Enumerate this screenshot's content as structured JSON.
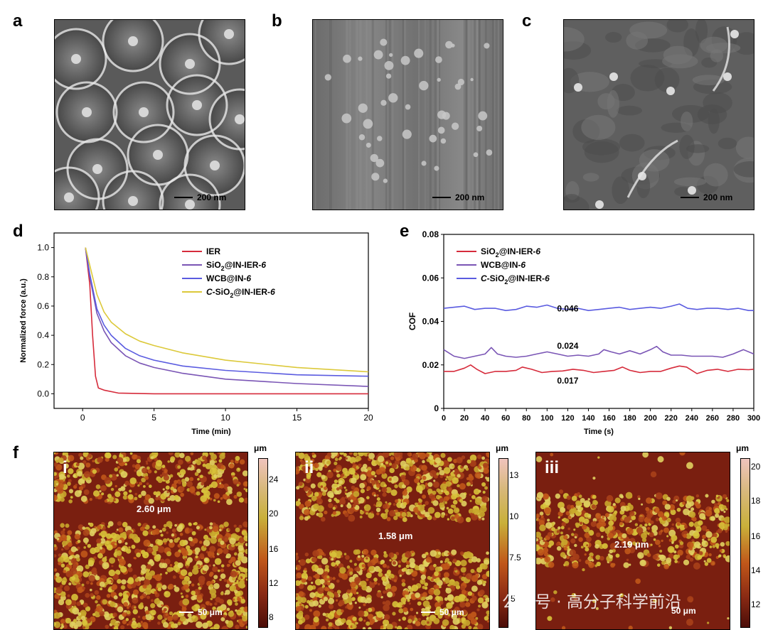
{
  "panels": {
    "a": "a",
    "b": "b",
    "c": "c",
    "d": "d",
    "e": "e",
    "f": "f"
  },
  "sem_scale_label": "200 nm",
  "chart_d": {
    "type": "line",
    "xlabel": "Time (min)",
    "ylabel": "Normalized force (a.u.)",
    "xlim": [
      -2,
      20
    ],
    "ylim": [
      -0.1,
      1.1
    ],
    "xticks": [
      0,
      5,
      10,
      15,
      20
    ],
    "yticks": [
      0.0,
      0.2,
      0.4,
      0.6,
      0.8,
      1.0
    ],
    "legend_position": "top-right",
    "series": [
      {
        "name": "IER",
        "color": "#d62b3b",
        "x": [
          0.2,
          0.5,
          0.7,
          0.9,
          1.1,
          1.5,
          2.5,
          5,
          10,
          20
        ],
        "y": [
          1.0,
          0.75,
          0.4,
          0.12,
          0.04,
          0.025,
          0.005,
          0.0,
          0.0,
          0.0
        ]
      },
      {
        "name": "SiO2@IN-IER-6",
        "color": "#7a55b5",
        "x": [
          0.2,
          0.5,
          1,
          1.5,
          2,
          3,
          4,
          5,
          7,
          10,
          15,
          20
        ],
        "y": [
          1.0,
          0.8,
          0.55,
          0.43,
          0.35,
          0.26,
          0.21,
          0.18,
          0.14,
          0.1,
          0.07,
          0.05
        ]
      },
      {
        "name": "WCB@IN-6",
        "color": "#5a5be0",
        "x": [
          0.2,
          0.5,
          1,
          1.5,
          2,
          3,
          4,
          5,
          7,
          10,
          15,
          20
        ],
        "y": [
          1.0,
          0.82,
          0.58,
          0.47,
          0.4,
          0.31,
          0.26,
          0.23,
          0.19,
          0.16,
          0.13,
          0.12
        ]
      },
      {
        "name": "C-SiO2@IN-IER-6",
        "color": "#dcc93a",
        "x": [
          0.2,
          0.5,
          1,
          1.5,
          2,
          3,
          4,
          5,
          7,
          10,
          15,
          20
        ],
        "y": [
          1.0,
          0.88,
          0.68,
          0.56,
          0.49,
          0.41,
          0.36,
          0.33,
          0.28,
          0.23,
          0.18,
          0.15
        ]
      }
    ],
    "legend": [
      {
        "pre": "IER",
        "sub": "",
        "post": "",
        "italic_pre": false
      },
      {
        "pre": "SiO",
        "sub": "2",
        "post": "@IN-IER-",
        "num": "6",
        "italic_pre": false
      },
      {
        "pre": "WCB@IN-",
        "sub": "",
        "post": "",
        "num": "6",
        "italic_pre": false
      },
      {
        "pre": "C",
        "mid": "-SiO",
        "sub": "2",
        "post": "@IN-IER-",
        "num": "6",
        "italic_pre": true
      }
    ]
  },
  "chart_e": {
    "type": "line",
    "xlabel": "Time (s)",
    "ylabel": "COF",
    "xlim": [
      0,
      300
    ],
    "ylim": [
      0,
      0.08
    ],
    "xticks": [
      0,
      20,
      40,
      60,
      80,
      100,
      120,
      140,
      160,
      180,
      200,
      220,
      240,
      260,
      280,
      300
    ],
    "yticks": [
      0,
      0.02,
      0.04,
      0.06,
      0.08
    ],
    "ytick_labels": [
      "0",
      "0.02",
      "0.04",
      "0.06",
      "0.08"
    ],
    "legend_position": "top-left",
    "annotations": [
      "0.046",
      "0.024",
      "0.017"
    ],
    "series": [
      {
        "name": "SiO2@IN-IER-6",
        "color": "#d62b3b",
        "x": [
          0,
          10,
          20,
          26,
          32,
          40,
          50,
          60,
          70,
          76,
          85,
          95,
          105,
          115,
          125,
          135,
          145,
          155,
          165,
          173,
          180,
          190,
          200,
          210,
          220,
          228,
          235,
          245,
          255,
          265,
          275,
          285,
          295,
          300
        ],
        "y": [
          0.017,
          0.017,
          0.0185,
          0.02,
          0.018,
          0.016,
          0.017,
          0.017,
          0.0175,
          0.019,
          0.018,
          0.0165,
          0.017,
          0.0172,
          0.018,
          0.0175,
          0.0165,
          0.017,
          0.0175,
          0.019,
          0.0175,
          0.0165,
          0.017,
          0.017,
          0.0185,
          0.0195,
          0.019,
          0.016,
          0.0175,
          0.018,
          0.017,
          0.018,
          0.0178,
          0.018
        ]
      },
      {
        "name": "WCB@IN-6",
        "color": "#7a55b5",
        "x": [
          0,
          10,
          20,
          30,
          40,
          46,
          52,
          60,
          70,
          80,
          90,
          100,
          110,
          120,
          130,
          140,
          150,
          155,
          162,
          170,
          180,
          190,
          200,
          206,
          212,
          220,
          230,
          240,
          250,
          260,
          270,
          280,
          290,
          300
        ],
        "y": [
          0.027,
          0.024,
          0.023,
          0.024,
          0.025,
          0.028,
          0.025,
          0.024,
          0.0235,
          0.024,
          0.025,
          0.026,
          0.025,
          0.024,
          0.0245,
          0.024,
          0.025,
          0.027,
          0.026,
          0.025,
          0.0265,
          0.025,
          0.027,
          0.0285,
          0.026,
          0.0245,
          0.0245,
          0.024,
          0.024,
          0.024,
          0.0235,
          0.025,
          0.027,
          0.025
        ]
      },
      {
        "name": "C-SiO2@IN-IER-6",
        "color": "#5a5be0",
        "x": [
          0,
          10,
          20,
          30,
          40,
          50,
          60,
          70,
          80,
          90,
          100,
          110,
          120,
          130,
          140,
          150,
          160,
          170,
          180,
          190,
          200,
          210,
          220,
          228,
          236,
          245,
          255,
          265,
          275,
          285,
          295,
          300
        ],
        "y": [
          0.046,
          0.0465,
          0.047,
          0.0455,
          0.046,
          0.046,
          0.045,
          0.0455,
          0.047,
          0.0465,
          0.0475,
          0.046,
          0.0455,
          0.046,
          0.045,
          0.0455,
          0.046,
          0.0465,
          0.0455,
          0.046,
          0.0465,
          0.046,
          0.047,
          0.048,
          0.046,
          0.0455,
          0.046,
          0.046,
          0.0455,
          0.046,
          0.045,
          0.045
        ]
      }
    ],
    "legend": [
      {
        "pre": "SiO",
        "sub": "2",
        "post": "@IN-IER-",
        "num": "6",
        "italic_pre": false
      },
      {
        "pre": "WCB@IN-",
        "sub": "",
        "post": "",
        "num": "6",
        "italic_pre": false
      },
      {
        "pre": "C",
        "mid": "-SiO",
        "sub": "2",
        "post": "@IN-IER-",
        "num": "6",
        "italic_pre": true
      }
    ]
  },
  "afm": [
    {
      "numeral": "i",
      "label": "2.60 μm",
      "scale": "50 μm",
      "unit": "μm",
      "ticks": [
        "24",
        "20",
        "16",
        "12",
        "8"
      ]
    },
    {
      "numeral": "ii",
      "label": "1.58 μm",
      "scale": "50 μm",
      "unit": "μm",
      "ticks": [
        "13",
        "10",
        "7.5",
        "5"
      ]
    },
    {
      "numeral": "iii",
      "label": "2.19 μm",
      "scale": "50 μm",
      "unit": "μm",
      "ticks": [
        "20",
        "18",
        "16",
        "14",
        "12"
      ]
    }
  ],
  "watermark": "公众号 · 高分子科学前沿",
  "colors": {
    "ier": "#d62b3b",
    "sio2": "#7a55b5",
    "wcb": "#5a5be0",
    "csio2": "#dcc93a",
    "afm_dark": "#6e1a0e",
    "afm_mid": "#c0571a",
    "afm_bright": "#d8c23a"
  }
}
